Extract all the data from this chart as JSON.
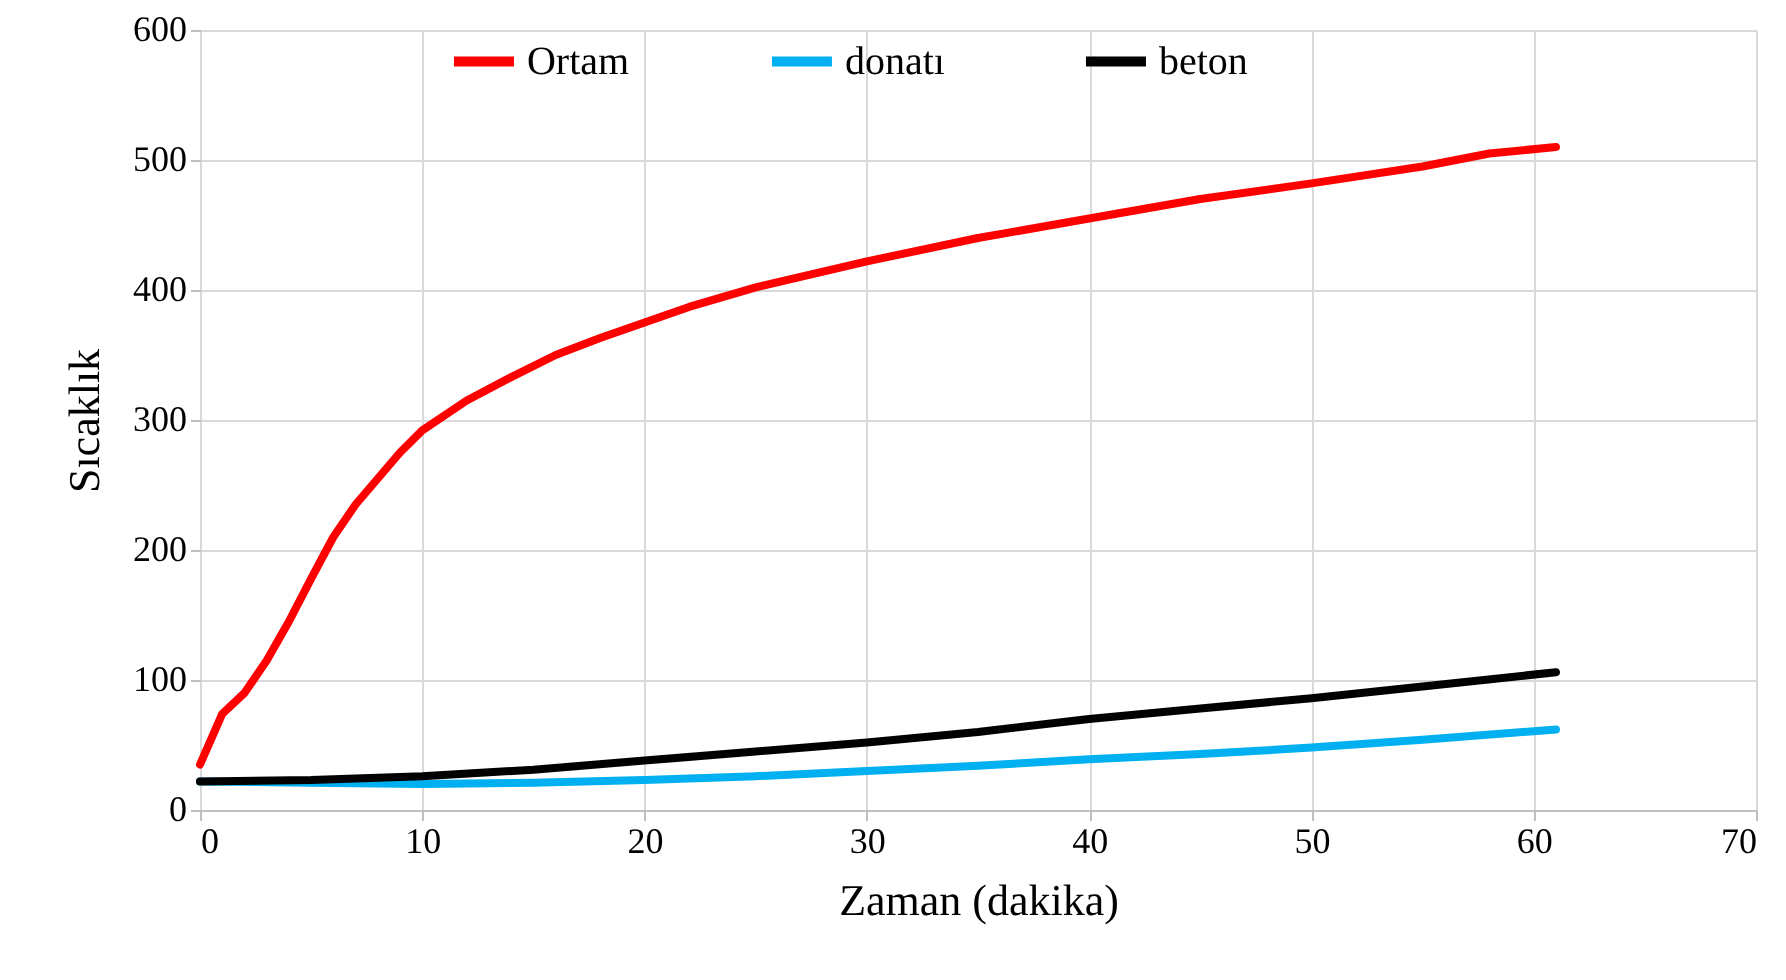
{
  "chart_data": {
    "type": "line",
    "xlabel": "Zaman (dakika)",
    "ylabel": "Sıcaklık",
    "xlim": [
      0,
      70
    ],
    "xticks": [
      0,
      10,
      20,
      30,
      40,
      50,
      60,
      70
    ],
    "ylim": [
      0,
      600
    ],
    "yticks": [
      0,
      100,
      200,
      300,
      400,
      500,
      600
    ],
    "grid": true,
    "legend": "top",
    "marker": "none",
    "line_style": "solid",
    "series": [
      {
        "name": "Ortam",
        "color": "#ff0000",
        "x": [
          0,
          1,
          2,
          3,
          4,
          5,
          6,
          7,
          8,
          9,
          10,
          12,
          14,
          16,
          18,
          20,
          22,
          25,
          30,
          35,
          40,
          45,
          50,
          55,
          58,
          61
        ],
        "values": [
          35,
          74,
          90,
          115,
          145,
          178,
          210,
          235,
          255,
          275,
          292,
          315,
          333,
          350,
          363,
          375,
          387,
          402,
          422,
          440,
          455,
          470,
          482,
          495,
          505,
          510
        ]
      },
      {
        "name": "donatı",
        "color": "#00b0f0",
        "x": [
          0,
          5,
          10,
          15,
          20,
          25,
          30,
          35,
          40,
          45,
          50,
          55,
          61
        ],
        "values": [
          22,
          21,
          20,
          21,
          23,
          26,
          30,
          34,
          39,
          43,
          48,
          54,
          62
        ]
      },
      {
        "name": "beton",
        "color": "#000000",
        "x": [
          0,
          5,
          10,
          15,
          20,
          25,
          30,
          35,
          40,
          45,
          50,
          55,
          61
        ],
        "values": [
          22,
          23,
          26,
          31,
          38,
          45,
          52,
          60,
          70,
          78,
          86,
          95,
          106
        ]
      }
    ]
  }
}
